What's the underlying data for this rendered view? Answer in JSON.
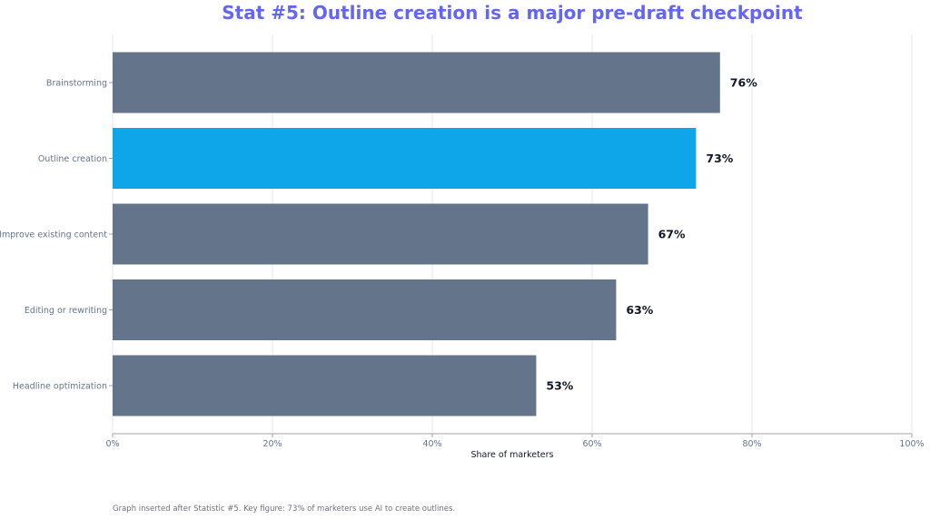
{
  "chart_data": {
    "type": "bar",
    "orientation": "horizontal",
    "title": "Stat #5: Outline creation is a major pre-draft checkpoint",
    "xlabel": "Share of marketers",
    "ylabel": "",
    "xlim": [
      0,
      100
    ],
    "xticks": [
      "0%",
      "20%",
      "40%",
      "60%",
      "80%",
      "100%"
    ],
    "categories": [
      "Brainstorming",
      "Outline creation",
      "Improve existing content",
      "Editing or rewriting",
      "Headline optimization"
    ],
    "values": [
      76,
      73,
      67,
      63,
      53
    ],
    "value_labels": [
      "76%",
      "73%",
      "67%",
      "63%",
      "53%"
    ],
    "highlight_index": 1,
    "grid": "vertical",
    "legend": "none"
  },
  "colors": {
    "title": "#6366f1",
    "bar_default": "#64748b",
    "bar_highlight": "#0ea5e9",
    "tick_label": "#64748b",
    "value_label": "#111827",
    "grid": "#e5e7eb",
    "axis": "#9ca3af"
  },
  "footnote": "Graph inserted after Statistic #5. Key figure: 73% of marketers use AI to create outlines."
}
